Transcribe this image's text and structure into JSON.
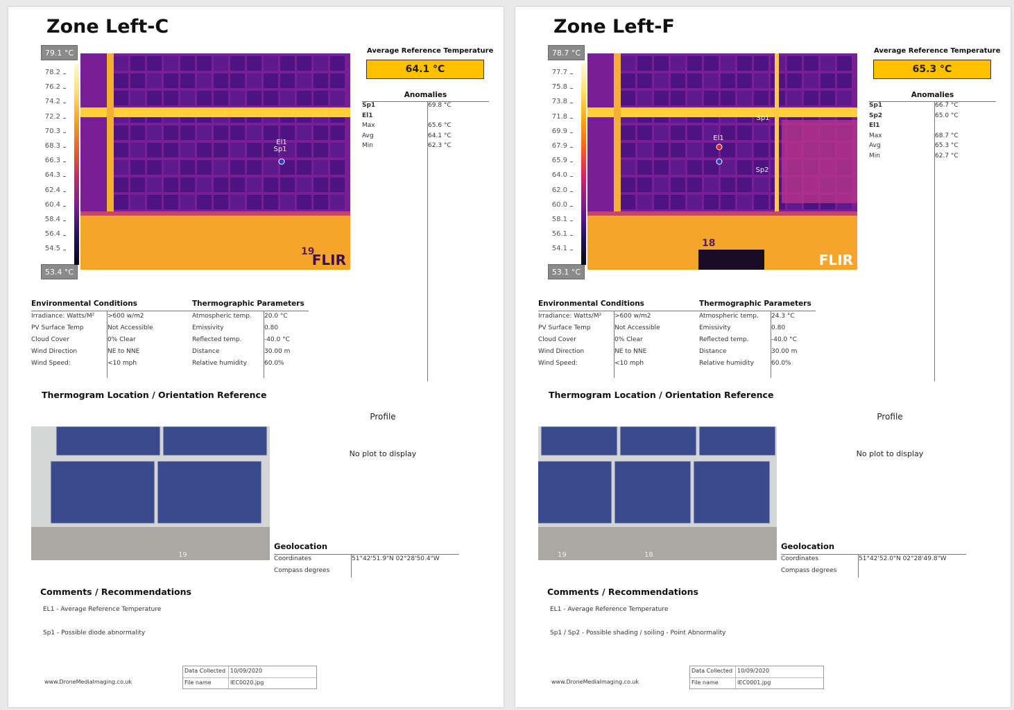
{
  "pages": [
    {
      "title": "Zone Left-C",
      "scale": {
        "max": "79.1 °C",
        "min": "53.4 °C",
        "ticks": [
          "78.2",
          "76.2",
          "74.2",
          "72.2",
          "70.3",
          "68.3",
          "66.3",
          "64.3",
          "62.4",
          "60.4",
          "58.4",
          "56.4",
          "54.5"
        ]
      },
      "thermal": {
        "markers": [
          "El1",
          "Sp1"
        ],
        "logo": "FLIR",
        "number": "19"
      },
      "avg_ref": {
        "label": "Average Reference Temperature",
        "value": "64.1 °C"
      },
      "anomalies": {
        "title": "Anomalies",
        "rows": [
          [
            "Sp1",
            "69.8 °C"
          ],
          [
            "El1"
          ],
          [
            "Max",
            "65.6 °C"
          ],
          [
            "Avg",
            "64.1 °C"
          ],
          [
            "Min",
            "62.3 °C"
          ]
        ]
      },
      "env": {
        "title": "Environmental Conditions",
        "rows": [
          [
            "Irradiance: Watts/M²",
            ">600 w/m2"
          ],
          [
            "PV Surface Temp",
            "Not Accessible"
          ],
          [
            "Cloud Cover",
            "0% Clear"
          ],
          [
            "Wind Direction",
            "NE to NNE"
          ],
          [
            "Wind Speed:",
            "<10 mph"
          ]
        ]
      },
      "thermo": {
        "title": "Thermographic Parameters",
        "rows": [
          [
            "Atmospheric temp.",
            "20.0 °C"
          ],
          [
            "Emissivity",
            "0.80"
          ],
          [
            "Reflected temp.",
            "-40.0 °C"
          ],
          [
            "Distance",
            "30.00 m"
          ],
          [
            "Relative humidity",
            "60.0%"
          ]
        ]
      },
      "location_title": "Thermogram Location / Orientation Reference",
      "photo_labels": [
        "19"
      ],
      "profile": {
        "title": "Profile",
        "message": "No plot to display"
      },
      "geolocation": {
        "title": "Geolocation",
        "rows": [
          [
            "Coordinates",
            "51°42'51.9\"N 02°28'50.4\"W"
          ],
          [
            "Compass degrees"
          ]
        ]
      },
      "comments": {
        "title": "Comments / Recommendations",
        "lines": [
          "EL1 - Average Reference Temperature",
          "Sp1 - Possible diode abnormality"
        ]
      },
      "website": "www.DroneMediaImaging.co.uk",
      "footer_table": [
        [
          "Data Collected",
          "10/09/2020"
        ],
        [
          "File name",
          "IEC0020.jpg"
        ]
      ]
    },
    {
      "title": "Zone Left-F",
      "scale": {
        "max": "78.7 °C",
        "min": "53.1 °C",
        "ticks": [
          "77.7",
          "75.8",
          "73.8",
          "71.8",
          "69.9",
          "67.9",
          "65.9",
          "64.0",
          "62.0",
          "60.0",
          "58.1",
          "56.1",
          "54.1"
        ]
      },
      "thermal": {
        "markers": [
          "Sp1",
          "El1",
          "Sp2"
        ],
        "logo": "FLIR",
        "number": "18"
      },
      "avg_ref": {
        "label": "Average Reference Temperature",
        "value": "65.3 °C"
      },
      "anomalies": {
        "title": "Anomalies",
        "rows": [
          [
            "Sp1",
            "66.7 °C"
          ],
          [
            "Sp2",
            "65.0 °C"
          ],
          [
            "El1"
          ],
          [
            "Max",
            "68.7 °C"
          ],
          [
            "Avg",
            "65.3 °C"
          ],
          [
            "Min",
            "62.7 °C"
          ]
        ]
      },
      "env": {
        "title": "Environmental Conditions",
        "rows": [
          [
            "Irradiance: Watts/M²",
            ">600 w/m2"
          ],
          [
            "PV Surface Temp",
            "Not Accessible"
          ],
          [
            "Cloud Cover",
            "0% Clear"
          ],
          [
            "Wind Direction",
            "NE to NNE"
          ],
          [
            "Wind Speed:",
            "<10 mph"
          ]
        ]
      },
      "thermo": {
        "title": "Thermographic Parameters",
        "rows": [
          [
            "Atmospheric temp.",
            "24.3 °C"
          ],
          [
            "Emissivity",
            "0.80"
          ],
          [
            "Reflected temp.",
            "-40.0 °C"
          ],
          [
            "Distance",
            "30.00 m"
          ],
          [
            "Relative humidity",
            "60.0%"
          ]
        ]
      },
      "location_title": "Thermogram Location / Orientation Reference",
      "photo_labels": [
        "19",
        "18"
      ],
      "profile": {
        "title": "Profile",
        "message": "No plot to display"
      },
      "geolocation": {
        "title": "Geolocation",
        "rows": [
          [
            "Coordinates",
            "51°42'52.0\"N 02°28'49.8\"W"
          ],
          [
            "Compass degrees"
          ]
        ]
      },
      "comments": {
        "title": "Comments / Recommendations",
        "lines": [
          "EL1 - Average Reference Temperature",
          "Sp1 / Sp2 - Possible shading / soiling - Point Abnormality"
        ]
      },
      "website": "www.DroneMediaImaging.co.uk",
      "footer_table": [
        [
          "Data Collected",
          "10/09/2020"
        ],
        [
          "File name",
          "IEC0001.jpg"
        ]
      ]
    }
  ]
}
